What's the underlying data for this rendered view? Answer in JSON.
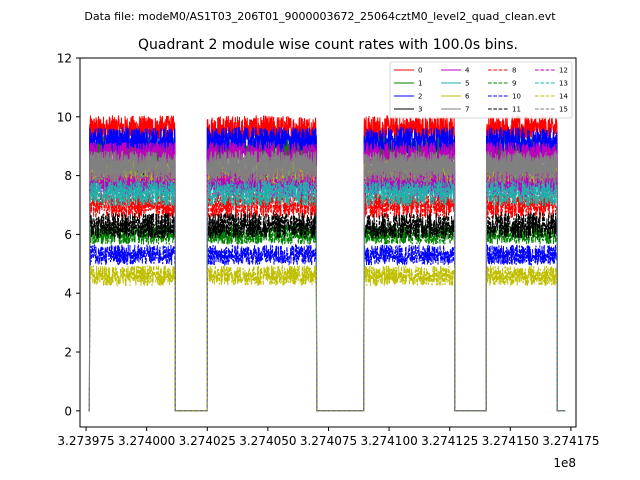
{
  "figure": {
    "suptitle": "Data file: modeM0/AS1T03_206T01_9000003672_25064cztM0_level2_quad_clean.evt"
  },
  "chart_data": {
    "type": "line",
    "title": "Quadrant 2 module wise count rates with 100.0s bins.",
    "xlabel": "",
    "ylabel": "",
    "x_offset_label": "1e8",
    "xlim": [
      3.2739725,
      3.2741771
    ],
    "ylim": [
      -0.55,
      12
    ],
    "xticks": [
      3.273975,
      3.274,
      3.274025,
      3.27405,
      3.274075,
      3.2741,
      3.274125,
      3.27415,
      3.274175
    ],
    "xtick_labels": [
      "3.273975",
      "3.274000",
      "3.274025",
      "3.274050",
      "3.274075",
      "3.274100",
      "3.274125",
      "3.274150",
      "3.274175"
    ],
    "yticks": [
      0,
      2,
      4,
      6,
      8,
      10,
      12
    ],
    "ytick_labels": [
      "0",
      "2",
      "4",
      "6",
      "8",
      "10",
      "12"
    ],
    "grid": false,
    "legend_position": "top-right",
    "segments": [
      {
        "start": 3.2739764,
        "end": 3.2740117
      },
      {
        "start": 3.2740249,
        "end": 3.27407
      },
      {
        "start": 3.2740896,
        "end": 3.274127
      },
      {
        "start": 3.2741401,
        "end": 3.2741693
      }
    ],
    "gap_level": 0,
    "series": [
      {
        "name": "0",
        "level": 9.6,
        "color": "#ff0000",
        "style": "solid"
      },
      {
        "name": "1",
        "level": 8.9,
        "color": "#008000",
        "style": "solid"
      },
      {
        "name": "2",
        "level": 9.2,
        "color": "#0000ff",
        "style": "solid"
      },
      {
        "name": "3",
        "level": 8.0,
        "color": "#000000",
        "style": "solid"
      },
      {
        "name": "4",
        "level": 8.7,
        "color": "#bf00bf",
        "style": "solid"
      },
      {
        "name": "5",
        "level": 7.8,
        "color": "#20b2aa",
        "style": "solid"
      },
      {
        "name": "6",
        "level": 8.1,
        "color": "#bfbf00",
        "style": "solid"
      },
      {
        "name": "7",
        "level": 8.4,
        "color": "#808080",
        "style": "solid"
      },
      {
        "name": "8",
        "level": 7.0,
        "color": "#ff0000",
        "style": "dashed"
      },
      {
        "name": "9",
        "level": 6.0,
        "color": "#008000",
        "style": "dashed"
      },
      {
        "name": "10",
        "level": 5.3,
        "color": "#0000ff",
        "style": "dashed"
      },
      {
        "name": "11",
        "level": 6.3,
        "color": "#000000",
        "style": "dashed"
      },
      {
        "name": "12",
        "level": 7.7,
        "color": "#bf00bf",
        "style": "dashed"
      },
      {
        "name": "13",
        "level": 7.4,
        "color": "#20b2aa",
        "style": "dashed"
      },
      {
        "name": "14",
        "level": 4.6,
        "color": "#bfbf00",
        "style": "dashed"
      },
      {
        "name": "15",
        "level": 8.2,
        "color": "#808080",
        "style": "dashed"
      }
    ]
  }
}
